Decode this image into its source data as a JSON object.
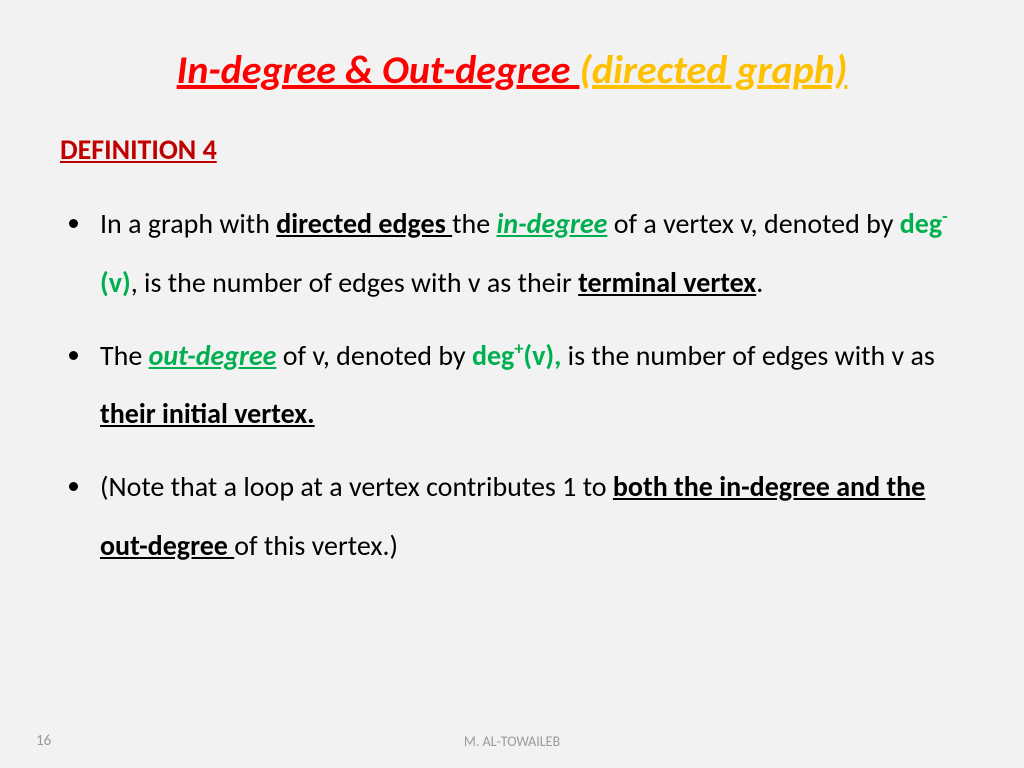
{
  "title": {
    "part1": "In-degree & Out-degree ",
    "part2": "(directed graph)"
  },
  "heading": "DEFINITION 4",
  "bullet1": {
    "t1": "In a graph with ",
    "t2": "directed edges ",
    "t3": "the ",
    "t4": "in-degree",
    "t5": " of a vertex v, denoted by ",
    "t6_pre": "deg",
    "t6_sup": "-",
    "t6_post": " (v)",
    "t7": ", is the number of edges with v as their ",
    "t8": "terminal vertex",
    "t9": "."
  },
  "bullet2": {
    "t1": " The ",
    "t2": "out-degree",
    "t3": " of v, denoted by ",
    "t4_pre": "deg",
    "t4_sup": "+",
    "t4_post": "(v),",
    "t5": " is the number of edges with v as ",
    "t6": "their initial vertex."
  },
  "bullet3": {
    "t1": "(Note that a loop at a vertex contributes 1 to ",
    "t2": "both the in-degree and the out-degree ",
    "t3": "of this vertex.)"
  },
  "footer": {
    "author": "M. AL-TOWAILEB",
    "page": "16"
  }
}
